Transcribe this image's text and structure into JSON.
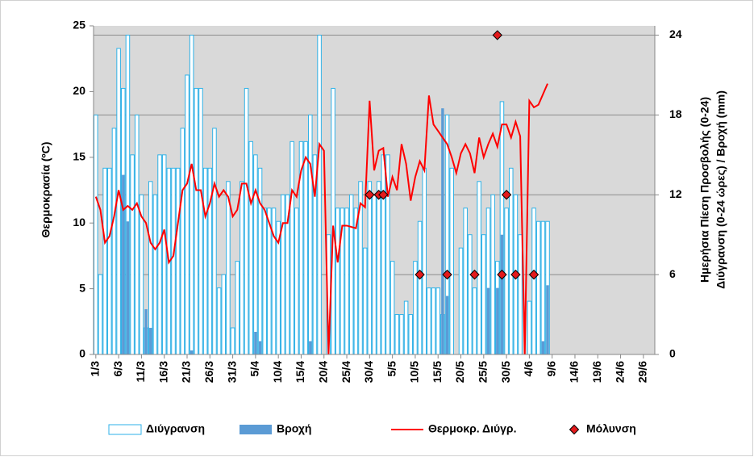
{
  "chart_data": {
    "type": "combo",
    "y_label": "Θερμοκρασία (ºC)",
    "y2_label": [
      "Ημερήσια Πίεση Προσβολής (0-24)",
      "Διύγρανση (0-24 ώρες)  /  Βροχή (mm)"
    ],
    "ylim": [
      0,
      25
    ],
    "yticks": [
      0,
      5,
      10,
      15,
      20,
      25
    ],
    "y2lim": [
      0,
      24.7
    ],
    "y2ticks": [
      0,
      6,
      12,
      18,
      24
    ],
    "grid": true,
    "legend": "bottom",
    "categories": [
      "1/3",
      null,
      null,
      null,
      null,
      "6/3",
      null,
      null,
      null,
      null,
      "11/3",
      null,
      null,
      null,
      null,
      "16/3",
      null,
      null,
      null,
      null,
      "21/3",
      null,
      null,
      null,
      null,
      "26/3",
      null,
      null,
      null,
      null,
      "31/3",
      null,
      null,
      null,
      null,
      "5/4",
      null,
      null,
      null,
      null,
      "10/4",
      null,
      null,
      null,
      null,
      "15/4",
      null,
      null,
      null,
      null,
      "20/4",
      null,
      null,
      null,
      null,
      "25/4",
      null,
      null,
      null,
      null,
      "30/4",
      null,
      null,
      null,
      null,
      "5/5",
      null,
      null,
      null,
      null,
      "10/5",
      null,
      null,
      null,
      null,
      "15/5",
      null,
      null,
      null,
      null,
      "20/5",
      null,
      null,
      null,
      null,
      "25/5",
      null,
      null,
      null,
      null,
      "30/5",
      null,
      null,
      null,
      null,
      "4/6",
      null,
      null,
      null,
      null,
      "9/6",
      null,
      null,
      null,
      null,
      "14/6",
      null,
      null,
      null,
      null,
      "19/6",
      null,
      null,
      null,
      null,
      "24/6",
      null,
      null,
      null,
      null,
      "29/6",
      null,
      null
    ],
    "series": [
      {
        "name": "Διύγρανση",
        "type": "bar",
        "axis": "y2",
        "color": "#2eb2e8",
        "values": [
          18,
          6,
          14,
          14,
          17,
          23,
          20,
          24,
          15,
          18,
          12,
          2,
          13,
          12,
          15,
          15,
          14,
          14,
          14,
          17,
          21,
          24,
          20,
          20,
          14,
          14,
          17,
          5,
          6,
          13,
          2,
          7,
          13,
          20,
          16,
          15,
          14,
          11,
          11,
          11,
          10,
          12,
          12,
          16,
          11,
          16,
          16,
          18,
          15,
          24,
          0,
          9,
          20,
          11,
          11,
          11,
          12,
          11,
          13,
          8,
          13,
          12,
          13,
          15,
          15,
          7,
          3,
          3,
          4,
          3,
          7,
          10,
          14,
          5,
          5,
          5,
          3,
          18,
          14,
          0,
          8,
          11,
          9,
          5,
          13,
          9,
          11,
          12,
          7,
          19,
          11,
          14,
          12,
          9,
          0,
          4,
          11,
          10,
          10,
          10,
          null,
          null,
          null,
          null,
          null,
          null,
          null,
          null,
          null,
          null,
          null,
          null,
          null,
          null,
          null,
          null,
          null,
          null,
          null,
          null,
          null,
          null,
          null
        ]
      },
      {
        "name": "Βροχή",
        "type": "bar-filled",
        "axis": "y2",
        "color": "#5b9bd5",
        "values": [
          0,
          0,
          0,
          0,
          0,
          0,
          13.5,
          10,
          0,
          0,
          0,
          3.4,
          2,
          0,
          0,
          0,
          0,
          0,
          0,
          0,
          0,
          0.3,
          0,
          0,
          0,
          0,
          0,
          0,
          0,
          0,
          0,
          0,
          0,
          0,
          0,
          1.7,
          1,
          0,
          0,
          0,
          0,
          0,
          0,
          0,
          0,
          0,
          0,
          1,
          0,
          0,
          0,
          0,
          0,
          0,
          0,
          0,
          0,
          0,
          0,
          0,
          0,
          0,
          0,
          0,
          0,
          0,
          0,
          0,
          0,
          0,
          0,
          0,
          0,
          0,
          0,
          0,
          18.5,
          4.4,
          0,
          0,
          0,
          0,
          0,
          0,
          0,
          0,
          5,
          0,
          5,
          9,
          0,
          0,
          0,
          0,
          0,
          0,
          0,
          0,
          1,
          5.2,
          null,
          null,
          null,
          null,
          null,
          null,
          null,
          null,
          null,
          null,
          null,
          null,
          null,
          null,
          null,
          null,
          null,
          null,
          null,
          null,
          null,
          null,
          null
        ]
      },
      {
        "name": "Θερμοκρ. Διύγρ.",
        "type": "line",
        "axis": "y",
        "color": "#ff0000",
        "values": [
          12,
          11,
          8.5,
          9,
          10.5,
          12.5,
          11,
          11.3,
          11,
          11.5,
          10.5,
          10,
          8.5,
          8,
          8.5,
          9.5,
          7,
          7.5,
          10,
          12.5,
          13,
          14.5,
          12.5,
          12.5,
          10.5,
          11.5,
          13,
          12,
          12.5,
          12,
          10.5,
          11,
          13,
          13,
          11.5,
          12.5,
          11.5,
          11,
          10,
          9,
          8.5,
          10,
          10,
          12.5,
          12,
          14,
          15,
          14.5,
          12,
          16,
          15.5,
          0,
          9.8,
          7,
          9.8,
          9.8,
          9.7,
          9.6,
          11.5,
          11.2,
          19.3,
          14,
          15.5,
          15.7,
          12,
          13.5,
          12.5,
          16,
          14.5,
          11.7,
          13.5,
          14.7,
          14,
          19.7,
          17.5,
          17,
          16.5,
          16,
          15,
          13.8,
          15.3,
          16,
          15.3,
          13.8,
          16.5,
          15,
          16,
          16.8,
          15.8,
          17.5,
          17.5,
          16.5,
          17.7,
          16.6,
          0,
          19.3,
          18.8,
          19,
          19.8,
          20.6,
          null,
          null,
          null,
          null,
          null,
          null,
          null,
          null,
          null,
          null,
          null,
          null,
          null,
          null,
          null,
          null,
          null,
          null,
          null,
          null,
          null,
          null,
          null
        ]
      },
      {
        "name": "Μόλυνση",
        "type": "marker",
        "axis": "y2",
        "color": "#e31a1c",
        "values": [
          null,
          null,
          null,
          null,
          null,
          null,
          null,
          null,
          null,
          null,
          null,
          null,
          null,
          null,
          null,
          null,
          null,
          null,
          null,
          null,
          null,
          null,
          null,
          null,
          null,
          null,
          null,
          null,
          null,
          null,
          null,
          null,
          null,
          null,
          null,
          null,
          null,
          null,
          null,
          null,
          null,
          null,
          null,
          null,
          null,
          null,
          null,
          null,
          null,
          null,
          null,
          null,
          null,
          null,
          null,
          null,
          null,
          null,
          null,
          null,
          12,
          null,
          12,
          12,
          null,
          null,
          null,
          null,
          null,
          null,
          null,
          6,
          null,
          null,
          null,
          null,
          null,
          6,
          null,
          null,
          null,
          null,
          null,
          6,
          null,
          null,
          null,
          null,
          24,
          6,
          12,
          null,
          6,
          null,
          null,
          null,
          6,
          null,
          null,
          null,
          null,
          null,
          null,
          null,
          null,
          null,
          null,
          null,
          null,
          null,
          null,
          null,
          null,
          null,
          null,
          null,
          null,
          null,
          null,
          null,
          null,
          null,
          null
        ]
      }
    ]
  }
}
